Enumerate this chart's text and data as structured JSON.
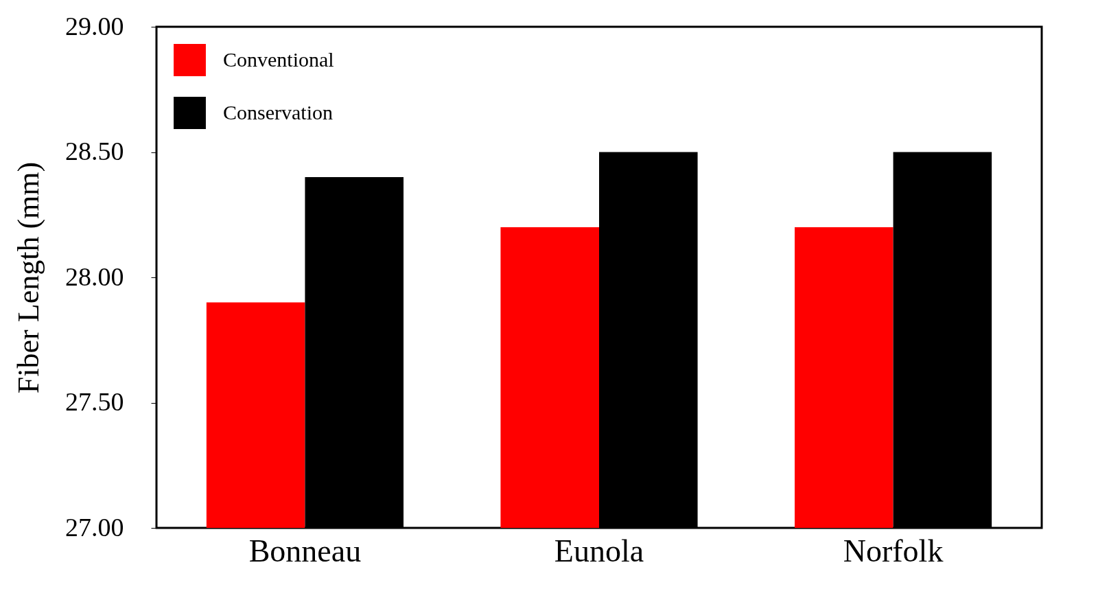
{
  "chart_data": {
    "type": "bar",
    "ylabel": "Fiber Length (mm)",
    "categories": [
      "Bonneau",
      "Eunola",
      "Norfolk"
    ],
    "series": [
      {
        "name": "Conventional",
        "color": "#ff0000",
        "values": [
          27.9,
          28.2,
          28.2
        ]
      },
      {
        "name": "Conservation",
        "color": "#000000",
        "values": [
          28.4,
          28.5,
          28.5
        ]
      }
    ],
    "ylim": [
      27,
      29
    ],
    "yticks": [
      {
        "value": 27,
        "label": "27.00"
      },
      {
        "value": 27.5,
        "label": "27.50"
      },
      {
        "value": 28,
        "label": "28.00"
      },
      {
        "value": 28.5,
        "label": "28.50"
      },
      {
        "value": 29,
        "label": "29.00"
      }
    ],
    "grid": false,
    "legend": "top left"
  }
}
